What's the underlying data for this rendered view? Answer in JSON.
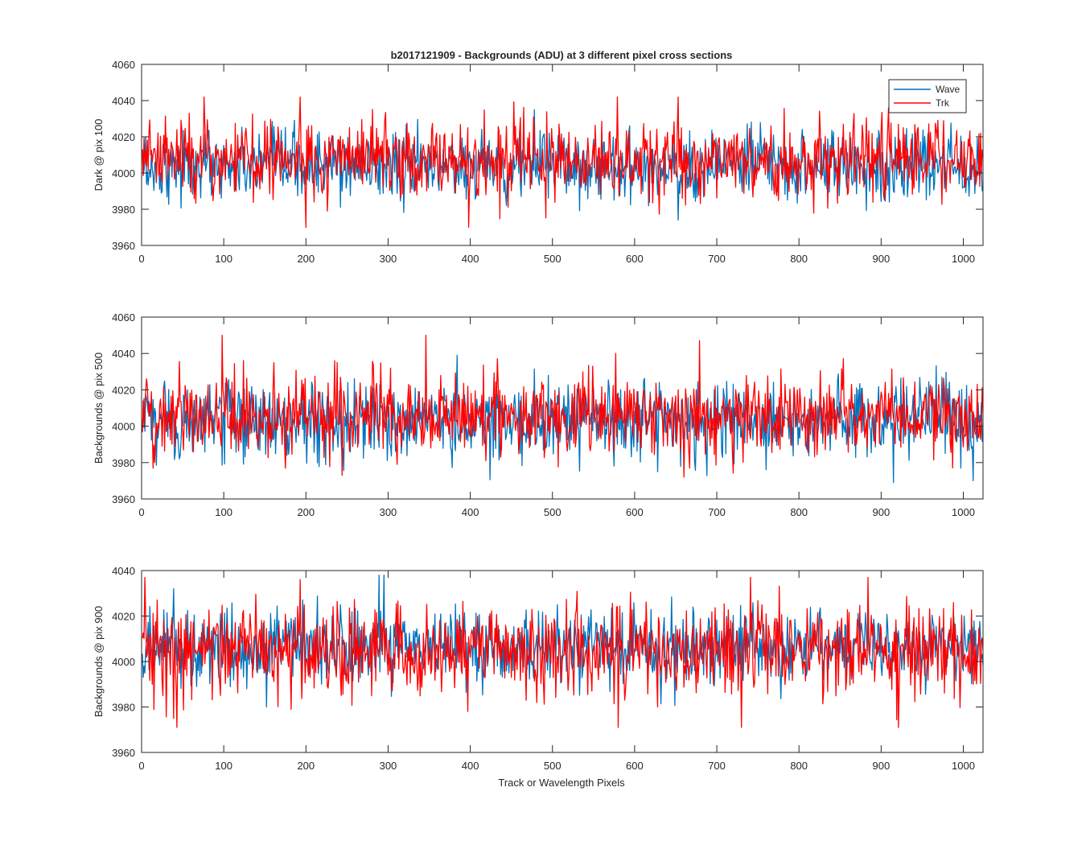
{
  "figure": {
    "title": "b2017121909 - Backgrounds (ADU) at 3 different pixel cross sections",
    "xlabel": "Track or Wavelength Pixels"
  },
  "legend": {
    "entries": [
      {
        "label": "Wave",
        "color": "#0072BD"
      },
      {
        "label": "Trk",
        "color": "#FF0000"
      }
    ],
    "placement": "top-right of first panel"
  },
  "chart_data": [
    {
      "type": "line",
      "ylabel": "Dark @ pix 100",
      "xlim": [
        0,
        1024
      ],
      "ylim": [
        3960,
        4060
      ],
      "xticks": [
        0,
        100,
        200,
        300,
        400,
        500,
        600,
        700,
        800,
        900,
        1000
      ],
      "yticks": [
        3960,
        3980,
        4000,
        4020,
        4040,
        4060
      ],
      "series": [
        {
          "name": "Wave",
          "color": "#0072BD",
          "x_range": [
            1,
            1024
          ],
          "y_mean": 4004,
          "y_min": 3974,
          "y_max": 4035,
          "approx_values": [
            4002,
            4006,
            3998,
            4010,
            4003,
            3995,
            4012,
            4001,
            4007,
            3990,
            4015,
            4004,
            3999,
            4008,
            4002,
            3993,
            4018,
            4005,
            4000,
            4011,
            3997,
            4006,
            4003,
            4014,
            3988,
            4009,
            4002,
            4005,
            3996,
            4013,
            4004,
            4000,
            4008,
            3992,
            4016,
            4003,
            4007,
            3998,
            4010,
            4002
          ]
        },
        {
          "name": "Trk",
          "color": "#FF0000",
          "x_range": [
            1,
            1024
          ],
          "y_mean": 4007,
          "y_min": 3970,
          "y_max": 4042,
          "approx_values": [
            4006,
            4010,
            4000,
            4015,
            4004,
            3998,
            4020,
            4008,
            4003,
            4012,
            3994,
            4018,
            4006,
            4009,
            4001,
            4025,
            4005,
            4011,
            3997,
            4014,
            4007,
            4003,
            4019,
            4002,
            4010,
            4042,
            4006,
            3999,
            4013,
            4008,
            4004,
            4017,
            4001,
            4011,
            4006,
            4036,
            4003,
            4012,
            4007,
            4009
          ]
        }
      ]
    },
    {
      "type": "line",
      "ylabel": "Backgrounds @ pix 500",
      "xlim": [
        0,
        1024
      ],
      "ylim": [
        3960,
        4060
      ],
      "xticks": [
        0,
        100,
        200,
        300,
        400,
        500,
        600,
        700,
        800,
        900,
        1000
      ],
      "yticks": [
        3960,
        3980,
        4000,
        4020,
        4040,
        4060
      ],
      "series": [
        {
          "name": "Wave",
          "color": "#0072BD",
          "x_range": [
            1,
            1024
          ],
          "y_mean": 4003,
          "y_min": 3969,
          "y_max": 4039,
          "approx_values": [
            4000,
            4005,
            3995,
            4008,
            4002,
            3990,
            4012,
            4001,
            4006,
            3985,
            4014,
            4003,
            3998,
            4009,
            4002,
            3992,
            4016,
            4004,
            3999,
            4010,
            3996,
            4005,
            4002,
            4013,
            3975,
            4008,
            4001,
            4004,
            3994,
            4012,
            4003,
            3999,
            4007,
            3990,
            4015,
            4002,
            4006,
            3997,
            4009,
            3970
          ]
        },
        {
          "name": "Trk",
          "color": "#FF0000",
          "x_range": [
            1,
            1024
          ],
          "y_mean": 4006,
          "y_min": 3972,
          "y_max": 4050,
          "approx_values": [
            3998,
            4008,
            4002,
            4012,
            4004,
            3995,
            4018,
            4006,
            4001,
            3973,
            4010,
            4016,
            4004,
            4050,
            4000,
            4022,
            4005,
            4009,
            3996,
            4013,
            4006,
            4002,
            4040,
            4001,
            4009,
            4020,
            4047,
            3999,
            4012,
            4007,
            4003,
            4016,
            4001,
            4010,
            4005,
            4018,
            4002,
            4011,
            4006,
            4008
          ]
        }
      ]
    },
    {
      "type": "line",
      "ylabel": "Backgrounds @ pix 900",
      "xlim": [
        0,
        1024
      ],
      "ylim": [
        3960,
        4040
      ],
      "xticks": [
        0,
        100,
        200,
        300,
        400,
        500,
        600,
        700,
        800,
        900,
        1000
      ],
      "yticks": [
        3960,
        3980,
        4000,
        4020,
        4040
      ],
      "series": [
        {
          "name": "Wave",
          "color": "#0072BD",
          "x_range": [
            1,
            1024
          ],
          "y_mean": 4006,
          "y_min": 3980,
          "y_max": 4038,
          "approx_values": [
            4005,
            4032,
            4000,
            4012,
            4004,
            3995,
            4018,
            4006,
            4002,
            4014,
            3998,
            4038,
            4005,
            4010,
            4003,
            3990,
            4020,
            4007,
            4001,
            4013,
            3997,
            4008,
            4004,
            4016,
            3994,
            4011,
            4003,
            4006,
            3996,
            4015,
            4005,
            4001,
            4009,
            3993,
            4018,
            4004,
            4008,
            3999,
            4012,
            4003
          ]
        },
        {
          "name": "Trk",
          "color": "#FF0000",
          "x_range": [
            1,
            1024
          ],
          "y_mean": 4005,
          "y_min": 3971,
          "y_max": 4037,
          "approx_values": [
            3990,
            3975,
            4004,
            4012,
            4003,
            3996,
            4016,
            4036,
            4001,
            4011,
            3995,
            4015,
            4004,
            4008,
            4002,
            3978,
            4013,
            4006,
            4000,
            4010,
            3996,
            4007,
            4003,
            4014,
            3980,
            4009,
            4002,
            4005,
            3971,
            4012,
            4004,
            4000,
            4008,
            3992,
            4037,
            4003,
            4007,
            3998,
            4010,
            3990
          ]
        }
      ]
    }
  ]
}
